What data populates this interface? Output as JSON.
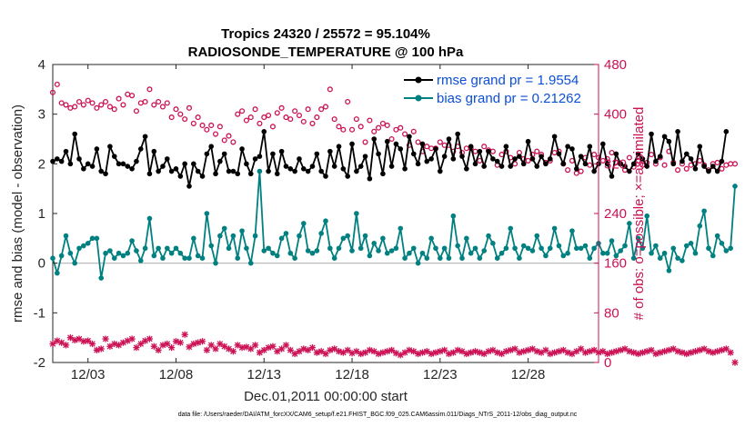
{
  "chart_data": {
    "type": "line",
    "title_line1": "Tropics 24320 / 25572 = 95.104%",
    "title_line2": "RADIOSONDE_TEMPERATURE @ 100 hPa",
    "ylabel": "rmse and bias (model - observation)",
    "y2label": "# of obs: o=possible; ×=assimilated",
    "xlabel": "Dec.01,2011 00:00:00 start",
    "footnote": "data file: /Users/raeder/DAI/ATM_forcXX/CAM6_setup/f.e21.FHIST_BGC.f09_025.CAM6assim.011/Diags_NTrS_2011-12/obs_diag_output.nc",
    "xlim": [
      1.0,
      32.0
    ],
    "ylim": [
      -2,
      4
    ],
    "y2lim": [
      0,
      480
    ],
    "yticks": [
      "-2",
      "-1",
      "0",
      "1",
      "2",
      "3",
      "4"
    ],
    "y2ticks": [
      "0",
      "80",
      "160",
      "240",
      "320",
      "400",
      "480"
    ],
    "xticks": [
      {
        "value": 3,
        "label": "12/03"
      },
      {
        "value": 8,
        "label": "12/08"
      },
      {
        "value": 13,
        "label": "12/13"
      },
      {
        "value": 18,
        "label": "12/18"
      },
      {
        "value": 23,
        "label": "12/23"
      },
      {
        "value": 28,
        "label": "12/28"
      }
    ],
    "legend": [
      {
        "label": "rmse grand pr = 1.9554",
        "color": "#000000"
      },
      {
        "label": "bias grand pr = 0.21262",
        "color": "#008080"
      }
    ],
    "colors": {
      "rmse": "#000000",
      "bias": "#008080",
      "obs": "#cc1155",
      "zero_line": "#b3b3b3"
    },
    "series": [
      {
        "name": "rmse",
        "x0": 1.0,
        "dx": 0.25,
        "values": [
          2.05,
          2.1,
          2.05,
          2.25,
          2.0,
          2.6,
          2.1,
          1.9,
          2.0,
          1.95,
          2.3,
          1.85,
          1.8,
          2.35,
          2.15,
          2.0,
          2.0,
          1.95,
          1.9,
          2.05,
          2.3,
          2.55,
          1.8,
          2.25,
          1.85,
          1.95,
          2.1,
          1.85,
          1.9,
          1.75,
          2.0,
          1.55,
          2.0,
          1.85,
          1.75,
          2.2,
          2.35,
          1.8,
          2.05,
          2.2,
          1.85,
          1.85,
          1.8,
          2.3,
          2.0,
          1.8,
          2.1,
          2.15,
          2.65,
          1.85,
          2.2,
          1.8,
          2.25,
          1.95,
          1.9,
          1.85,
          2.1,
          1.9,
          1.85,
          1.95,
          2.2,
          1.85,
          1.75,
          2.25,
          1.95,
          2.35,
          1.9,
          1.75,
          2.4,
          1.85,
          1.95,
          2.15,
          1.7,
          2.5,
          2.2,
          1.8,
          2.45,
          1.95,
          2.4,
          2.3,
          1.9,
          2.55,
          2.2,
          2.0,
          2.4,
          2.05,
          2.1,
          2.3,
          1.85,
          2.15,
          2.5,
          2.1,
          2.6,
          2.15,
          1.9,
          2.35,
          2.0,
          2.25,
          1.95,
          2.25,
          2.1,
          2.05,
          1.95,
          2.35,
          1.95,
          2.1,
          2.15,
          2.0,
          2.45,
          2.1,
          1.95,
          2.15,
          2.0,
          2.1,
          2.55,
          2.2,
          2.0,
          2.35,
          2.3,
          1.9,
          2.15,
          2.0,
          2.35,
          1.85,
          2.0,
          2.4,
          2.0,
          1.75,
          2.2,
          2.0,
          1.95,
          1.85,
          2.0,
          2.2,
          2.1,
          1.95,
          2.6,
          2.05,
          2.15,
          2.55,
          2.45,
          2.0,
          2.65,
          2.05,
          2.2,
          2.1,
          1.9,
          2.35,
          1.95,
          1.85,
          1.95,
          1.85,
          2.05,
          2.65
        ]
      },
      {
        "name": "bias",
        "x0": 1.0,
        "dx": 0.25,
        "values": [
          0.1,
          -0.2,
          0.15,
          0.55,
          0.2,
          0.0,
          0.3,
          0.35,
          0.4,
          0.5,
          0.5,
          -0.3,
          0.2,
          0.25,
          0.1,
          0.2,
          0.15,
          0.2,
          0.45,
          0.25,
          0.05,
          0.3,
          0.9,
          0.15,
          0.3,
          0.1,
          0.3,
          0.2,
          0.3,
          0.2,
          0.1,
          0.1,
          0.5,
          0.15,
          0.1,
          1.0,
          0.35,
          0.0,
          0.55,
          0.7,
          0.3,
          0.55,
          0.1,
          0.65,
          0.3,
          0.0,
          0.55,
          1.85,
          0.25,
          0.3,
          0.2,
          0.15,
          0.5,
          0.6,
          0.2,
          0.1,
          0.55,
          0.8,
          0.25,
          0.2,
          0.25,
          0.6,
          0.85,
          0.3,
          0.1,
          0.3,
          0.5,
          0.55,
          0.25,
          1.0,
          0.3,
          0.55,
          0.15,
          0.4,
          0.25,
          0.5,
          0.2,
          0.25,
          0.3,
          0.7,
          0.1,
          0.2,
          0.3,
          0.0,
          0.2,
          0.1,
          0.5,
          0.3,
          0.1,
          0.3,
          0.1,
          0.95,
          0.35,
          0.1,
          0.5,
          0.2,
          0.3,
          0.1,
          0.25,
          0.55,
          0.4,
          0.1,
          0.2,
          0.3,
          0.7,
          0.3,
          0.1,
          0.35,
          0.3,
          0.25,
          0.55,
          0.3,
          0.15,
          0.3,
          0.7,
          0.35,
          0.15,
          0.2,
          0.65,
          0.3,
          0.3,
          0.35,
          0.1,
          0.3,
          0.4,
          0.2,
          0.2,
          0.45,
          0.15,
          0.25,
          0.35,
          0.8,
          0.1,
          0.5,
          0.3,
          0.95,
          0.2,
          0.35,
          0.1,
          0.2,
          -0.15,
          0.3,
          0.1,
          0.05,
          0.35,
          0.4,
          0.2,
          0.75,
          1.05,
          0.3,
          0.15,
          0.55,
          0.4,
          0.25,
          0.3,
          1.55
        ]
      },
      {
        "name": "obs_possible",
        "x0": 1.0,
        "dx": 0.25,
        "values": [
          435,
          448,
          418,
          415,
          410,
          412,
          420,
          415,
          422,
          418,
          410,
          415,
          420,
          412,
          408,
          425,
          415,
          432,
          430,
          405,
          418,
          420,
          440,
          415,
          420,
          412,
          418,
          395,
          408,
          400,
          392,
          410,
          385,
          395,
          382,
          375,
          382,
          368,
          380,
          358,
          365,
          355,
          400,
          405,
          390,
          395,
          408,
          385,
          395,
          398,
          380,
          402,
          410,
          395,
          392,
          405,
          398,
          388,
          408,
          385,
          395,
          408,
          412,
          440,
          392,
          380,
          375,
          420,
          375,
          392,
          380,
          355,
          390,
          372,
          378,
          385,
          382,
          360,
          375,
          378,
          368,
          350,
          372,
          355,
          340,
          348,
          345,
          345,
          355,
          350,
          350,
          340,
          348,
          338,
          345,
          345,
          340,
          325,
          348,
          342,
          340,
          318,
          335,
          340,
          330,
          320,
          338,
          328,
          325,
          335,
          340,
          335,
          322,
          325,
          338,
          340,
          320,
          310,
          325,
          305,
          308,
          330,
          318,
          335,
          330,
          325,
          328,
          338,
          322,
          320,
          310,
          330,
          315,
          325,
          318,
          322,
          335,
          320,
          330,
          318,
          340,
          322,
          310,
          320,
          312,
          318,
          320,
          325,
          318,
          310,
          320,
          322,
          312,
          318,
          320,
          320
        ]
      },
      {
        "name": "obs_assimilated",
        "x0": 1.0,
        "dx": 0.25,
        "values": [
          30,
          35,
          32,
          28,
          40,
          36,
          38,
          34,
          35,
          30,
          20,
          22,
          38,
          26,
          30,
          28,
          32,
          35,
          38,
          24,
          30,
          35,
          38,
          26,
          20,
          28,
          30,
          24,
          34,
          32,
          45,
          25,
          30,
          32,
          34,
          20,
          28,
          22,
          30,
          26,
          22,
          18,
          28,
          24,
          25,
          22,
          28,
          16,
          20,
          24,
          26,
          18,
          22,
          28,
          20,
          14,
          18,
          22,
          20,
          24,
          16,
          18,
          14,
          20,
          22,
          18,
          16,
          20,
          15,
          18,
          14,
          16,
          20,
          18,
          14,
          16,
          18,
          20,
          15,
          12,
          16,
          20,
          18,
          14,
          16,
          18,
          14,
          16,
          18,
          20,
          14,
          16,
          20,
          18,
          14,
          16,
          18,
          16,
          14,
          18,
          20,
          16,
          14,
          18,
          20,
          22,
          16,
          18,
          20,
          22,
          18,
          16,
          20,
          14,
          16,
          18,
          20,
          16,
          14,
          18,
          22,
          16,
          18,
          20,
          16,
          18,
          14,
          16,
          18,
          20,
          22,
          18,
          16,
          14,
          16,
          18,
          20,
          14,
          16,
          18,
          20,
          22,
          18,
          16,
          14,
          16,
          18,
          20,
          22,
          18,
          16,
          18,
          20,
          22,
          16,
          0
        ]
      }
    ]
  }
}
